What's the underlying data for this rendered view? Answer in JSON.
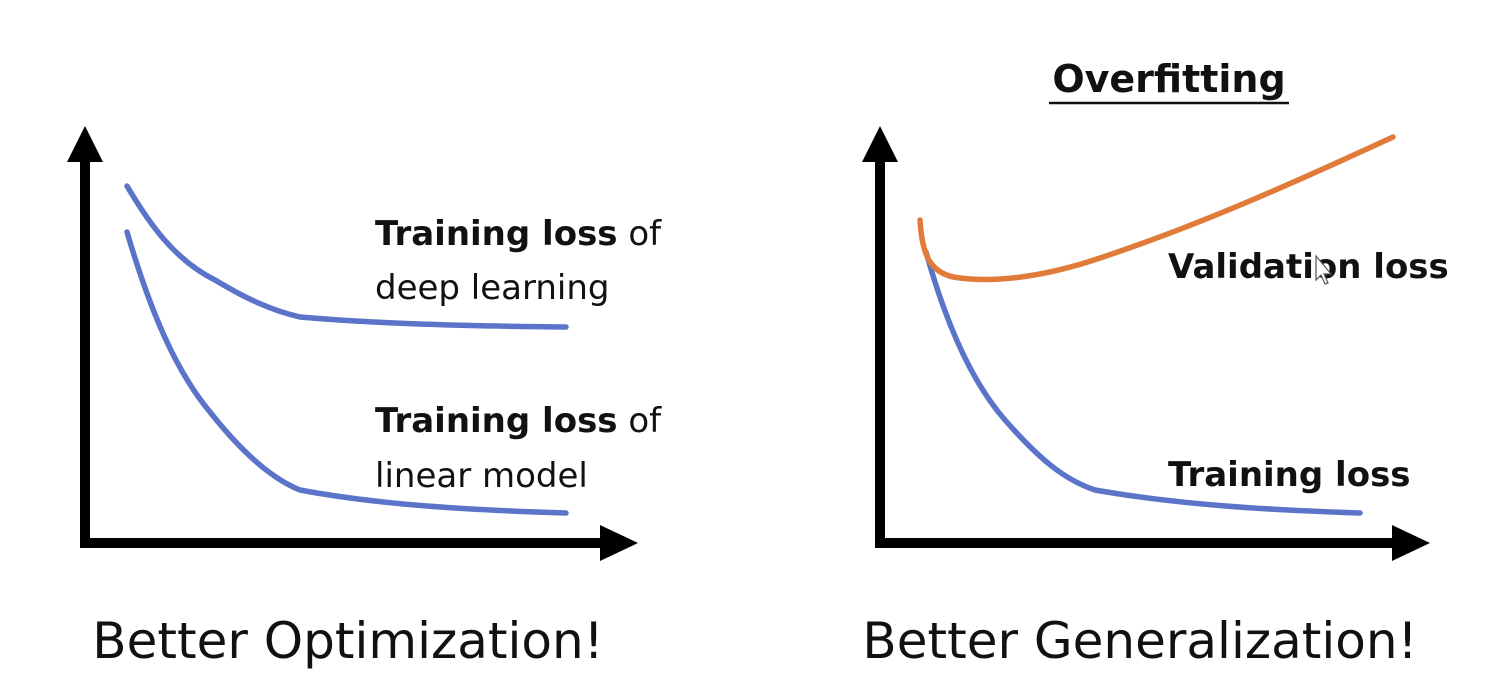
{
  "colors": {
    "training_curve": "#5b74c9",
    "validation_curve": "#e07b39",
    "axis": "#000000",
    "text": "#111111"
  },
  "left_panel": {
    "label_deep_bold": "Training loss",
    "label_deep_rest": " of",
    "label_deep_line2": "deep learning",
    "label_linear_bold": "Training loss",
    "label_linear_rest": " of",
    "label_linear_line2": "linear model",
    "caption": "Better Optimization!"
  },
  "right_panel": {
    "title": "Overfitting",
    "label_validation": "Validation loss",
    "label_training": "Training loss",
    "caption": "Better Generalization!"
  }
}
